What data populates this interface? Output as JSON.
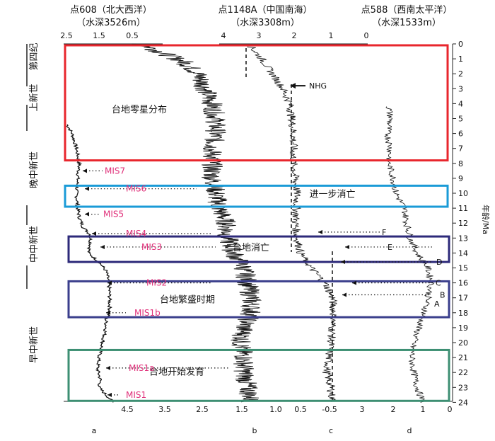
{
  "chart_data": {
    "type": "line",
    "sites": [
      {
        "id": "a",
        "name": "点608（北大西洋）",
        "depth": "（水深3526m）"
      },
      {
        "id": "b",
        "name": "点1148A（中国南海）",
        "depth": "（水深3308m）"
      },
      {
        "id": "c",
        "name": "点588（西南太平洋）",
        "depth": "（水深1533m）"
      }
    ],
    "top_ticks_a": [
      "2.5",
      "1.5",
      "0.5"
    ],
    "top_ticks_b": [
      "4",
      "3",
      "2",
      "1",
      "0"
    ],
    "bottom_ticks_a": [
      "4.5",
      "3.5",
      "2.5"
    ],
    "bottom_ticks_b": [
      "1.5",
      "1.0",
      "0.5"
    ],
    "bottom_ticks_c": [
      "-0.5",
      "3"
    ],
    "bottom_ticks_d": [
      "2",
      "1",
      "0"
    ],
    "age_ticks": [
      "0",
      "1",
      "2",
      "3",
      "4",
      "5",
      "6",
      "7",
      "8",
      "9",
      "10",
      "11",
      "12",
      "13",
      "14",
      "15",
      "16",
      "17",
      "18",
      "19",
      "20",
      "21",
      "22",
      "23",
      "24"
    ],
    "ylim": [
      0,
      24
    ],
    "y_label": "年龄/Ma",
    "epochs": [
      "第四纪",
      "上新世",
      "晚中新世",
      "中中新世",
      "早中新世"
    ],
    "boxes": [
      {
        "label": "台地零星分布",
        "from": 0,
        "to": 7.8,
        "color": "#e8262d"
      },
      {
        "label": "进一步消亡",
        "from": 9.4,
        "to": 10.9,
        "color": "#1a9bd7"
      },
      {
        "label": "台地消亡",
        "from": 12.8,
        "to": 14.6,
        "color": "#2d2a7a"
      },
      {
        "label": "台地繁盛时期",
        "from": 15.8,
        "to": 18.3,
        "color": "#3a3e8c"
      },
      {
        "label": "台地开始发育",
        "from": 20.4,
        "to": 23.9,
        "color": "#3d8f73"
      }
    ],
    "mis_labels": [
      {
        "label": "MIS7",
        "age": 8.5
      },
      {
        "label": "MIS6",
        "age": 9.7
      },
      {
        "label": "MIS5",
        "age": 11.4
      },
      {
        "label": "MIS4",
        "age": 12.7
      },
      {
        "label": "MIS3",
        "age": 13.6
      },
      {
        "label": "MIS2",
        "age": 16.0
      },
      {
        "label": "MIS1b",
        "age": 18.0
      },
      {
        "label": "MIS1a",
        "age": 21.7
      },
      {
        "label": "MIS1",
        "age": 23.5
      }
    ],
    "events": [
      {
        "label": "NHG",
        "age": 2.8
      },
      {
        "label": "F",
        "age": 12.6
      },
      {
        "label": "E",
        "age": 13.6
      },
      {
        "label": "D",
        "age": 14.6
      },
      {
        "label": "C",
        "age": 16.0
      },
      {
        "label": "B",
        "age": 16.8
      },
      {
        "label": "A",
        "age": 17.4
      }
    ],
    "panels": [
      "a",
      "b",
      "c",
      "d"
    ],
    "colors": {
      "mis": "#e0307a",
      "curve": "#111111"
    }
  }
}
